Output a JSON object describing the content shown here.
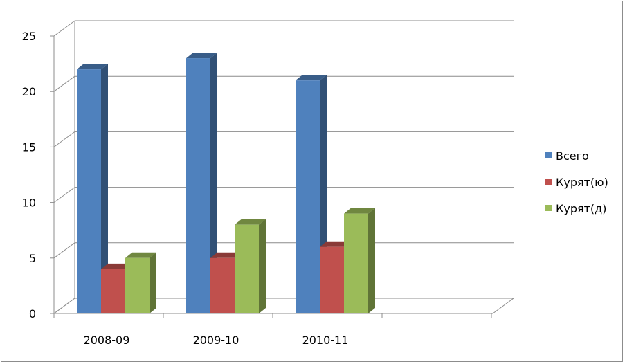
{
  "chart_data": {
    "type": "bar",
    "title": "",
    "xlabel": "",
    "ylabel": "",
    "categories": [
      "2008-09",
      "2009-10",
      "2010-11"
    ],
    "ylim": [
      0,
      25
    ],
    "yticks": [
      "0",
      "5",
      "10",
      "15",
      "20",
      "25"
    ],
    "grid": true,
    "legend_position": "right",
    "series": [
      {
        "name": "Всего",
        "values": [
          22,
          23,
          21
        ],
        "color": "#4f81bd"
      },
      {
        "name": "Курят(ю)",
        "values": [
          4,
          5,
          6
        ],
        "color": "#c0504d"
      },
      {
        "name": "Курят(д)",
        "values": [
          5,
          8,
          9
        ],
        "color": "#9bbb59"
      }
    ]
  }
}
